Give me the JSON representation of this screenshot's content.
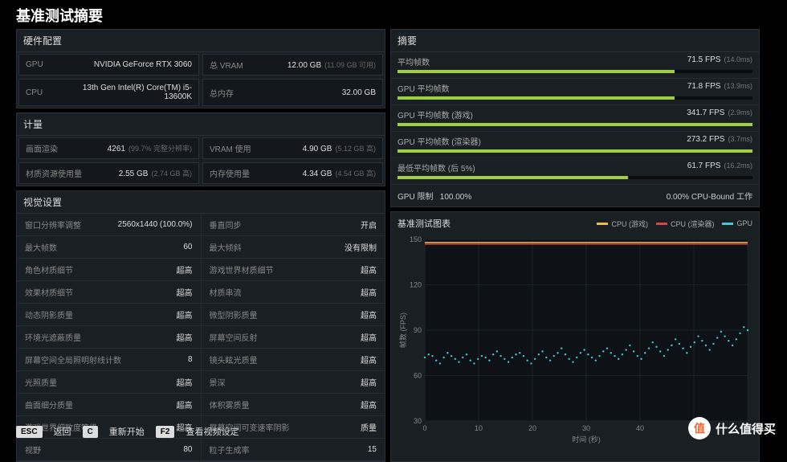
{
  "title": "基准测试摘要",
  "hardware": {
    "title": "硬件配置",
    "gpu_lab": "GPU",
    "gpu_val": "NVIDIA GeForce RTX 3060",
    "vram_lab": "总 VRAM",
    "vram_val": "12.00 GB",
    "vram_sub": "(11.09 GB 可用)",
    "cpu_lab": "CPU",
    "cpu_val": "13th Gen Intel(R) Core(TM) i5-13600K",
    "ram_lab": "总内存",
    "ram_val": "32.00 GB"
  },
  "metrics": {
    "title": "计量",
    "render_lab": "画面渲染",
    "render_val": "4261",
    "render_sub": "(99.7% 完整分辨率)",
    "vramuse_lab": "VRAM 使用",
    "vramuse_val": "4.90 GB",
    "vramuse_sub": "(5.12 GB 高)",
    "tex_lab": "材质资源使用量",
    "tex_val": "2.55 GB",
    "tex_sub": "(2.74 GB 高)",
    "memuse_lab": "内存使用量",
    "memuse_val": "4.34 GB",
    "memuse_sub": "(4.54 GB 高)"
  },
  "settings": {
    "title": "视觉设置",
    "rows": [
      [
        "窗口分辨率调整",
        "2560x1440 (100.0%)",
        "垂直同步",
        "开启"
      ],
      [
        "最大帧数",
        "60",
        "最大倾斜",
        "没有限制"
      ],
      [
        "角色材质细节",
        "超高",
        "游戏世界材质细节",
        "超高"
      ],
      [
        "效果材质细节",
        "超高",
        "材质串流",
        "超高"
      ],
      [
        "动态阴影质量",
        "超高",
        "微型阴影质量",
        "超高"
      ],
      [
        "环境光遮蔽质量",
        "超高",
        "屏幕空间反射",
        "超高"
      ],
      [
        "屏幕空间全局照明射线计数",
        "8",
        "镜头眩光质量",
        "超高"
      ],
      [
        "光照质量",
        "超高",
        "景深",
        "超高"
      ],
      [
        "曲面细分质量",
        "超高",
        "体积雾质量",
        "超高"
      ],
      [
        "游戏世界细致度等级",
        "超高",
        "屏幕空间可变速率阴影",
        "质量"
      ],
      [
        "视野",
        "80",
        "粒子生成率",
        "15"
      ]
    ]
  },
  "summary": {
    "title": "摘要",
    "bars": [
      {
        "lab": "平均帧数",
        "val": "71.5 FPS",
        "sub": "(14.0ms)",
        "pct": 78
      },
      {
        "lab": "GPU 平均帧数",
        "val": "71.8 FPS",
        "sub": "(13.9ms)",
        "pct": 78
      },
      {
        "lab": "GPU 平均帧数 (游戏)",
        "val": "341.7 FPS",
        "sub": "(2.9ms)",
        "pct": 100
      },
      {
        "lab": "GPU 平均帧数 (渲染器)",
        "val": "273.2 FPS",
        "sub": "(3.7ms)",
        "pct": 100
      },
      {
        "lab": "最低平均帧数 (后 5%)",
        "val": "61.7 FPS",
        "sub": "(16.2ms)",
        "pct": 65
      }
    ],
    "gpu_limit_lab": "GPU 限制",
    "gpu_limit_pct": "100.00%",
    "cpu_bound": "0.00% CPU-Bound 工作"
  },
  "chart": {
    "title": "基准测试图表",
    "legend": [
      {
        "lab": "CPU (游戏)",
        "color": "#f0c030"
      },
      {
        "lab": "CPU (渲染器)",
        "color": "#e04040"
      },
      {
        "lab": "GPU",
        "color": "#40c8d8"
      }
    ],
    "ylabel": "帧数 (FPS)",
    "xlabel": "时间 (秒)",
    "ylim": [
      30,
      150
    ],
    "yticks": [
      30,
      60,
      90,
      120,
      150
    ],
    "xlim": [
      0,
      60
    ],
    "xticks": [
      0,
      10,
      20,
      30,
      40,
      50,
      60
    ],
    "bg": "#0e1216",
    "grid": "#2a3038",
    "cpu_game_y": 148,
    "cpu_render_y": 148,
    "gpu_points": [
      72,
      74,
      73,
      70,
      68,
      72,
      75,
      73,
      71,
      69,
      72,
      74,
      70,
      68,
      71,
      73,
      72,
      70,
      74,
      76,
      73,
      71,
      69,
      72,
      74,
      75,
      73,
      70,
      68,
      71,
      74,
      76,
      72,
      70,
      73,
      75,
      78,
      74,
      71,
      69,
      72,
      75,
      77,
      74,
      72,
      70,
      73,
      76,
      78,
      75,
      73,
      71,
      74,
      77,
      80,
      76,
      73,
      71,
      75,
      78,
      82,
      79,
      76,
      73,
      77,
      80,
      84,
      81,
      78,
      75,
      79,
      82,
      86,
      83,
      80,
      77,
      81,
      85,
      89,
      86,
      83,
      80,
      84,
      88,
      92,
      90
    ]
  },
  "footer": {
    "esc": "ESC",
    "esc_lab": "返回",
    "c": "C",
    "c_lab": "重新开始",
    "f2": "F2",
    "f2_lab": "查看视频设定"
  },
  "logo": {
    "mark": "值",
    "text": "什么值得买"
  }
}
